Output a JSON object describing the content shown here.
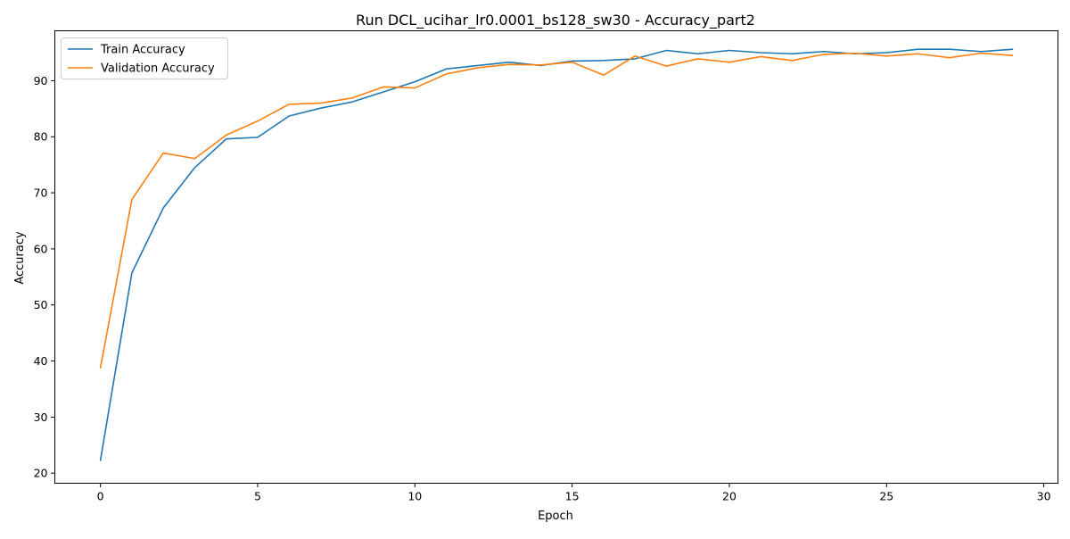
{
  "chart_data": {
    "type": "line",
    "title": "Run DCL_ucihar_lr0.0001_bs128_sw30 - Accuracy_part2",
    "xlabel": "Epoch",
    "ylabel": "Accuracy",
    "xlim": [
      -1.45,
      30.45
    ],
    "ylim": [
      18.2,
      98.9
    ],
    "xticks": [
      0,
      5,
      10,
      15,
      20,
      25,
      30
    ],
    "yticks": [
      20,
      30,
      40,
      50,
      60,
      70,
      80,
      90
    ],
    "grid": false,
    "legend_position": "upper left",
    "x": [
      0,
      1,
      2,
      3,
      4,
      5,
      6,
      7,
      8,
      9,
      10,
      11,
      12,
      13,
      14,
      15,
      16,
      17,
      18,
      19,
      20,
      21,
      22,
      23,
      24,
      25,
      26,
      27,
      28,
      29
    ],
    "series": [
      {
        "name": "Train Accuracy",
        "color": "#1f77b4",
        "values": [
          22.3,
          55.7,
          67.3,
          74.5,
          79.6,
          79.9,
          83.7,
          85.1,
          86.2,
          88.0,
          89.8,
          92.1,
          92.7,
          93.3,
          92.7,
          93.5,
          93.6,
          93.9,
          95.4,
          94.8,
          95.4,
          95.0,
          94.8,
          95.2,
          94.8,
          95.0,
          95.6,
          95.6,
          95.2,
          95.6
        ]
      },
      {
        "name": "Validation Accuracy",
        "color": "#ff7f0e",
        "values": [
          38.8,
          68.8,
          77.1,
          76.1,
          80.3,
          82.8,
          85.8,
          86.0,
          86.9,
          88.9,
          88.7,
          91.2,
          92.3,
          92.9,
          92.8,
          93.3,
          91.0,
          94.4,
          92.6,
          93.9,
          93.3,
          94.3,
          93.6,
          94.7,
          94.9,
          94.4,
          94.8,
          94.1,
          94.9,
          94.5
        ]
      }
    ]
  }
}
